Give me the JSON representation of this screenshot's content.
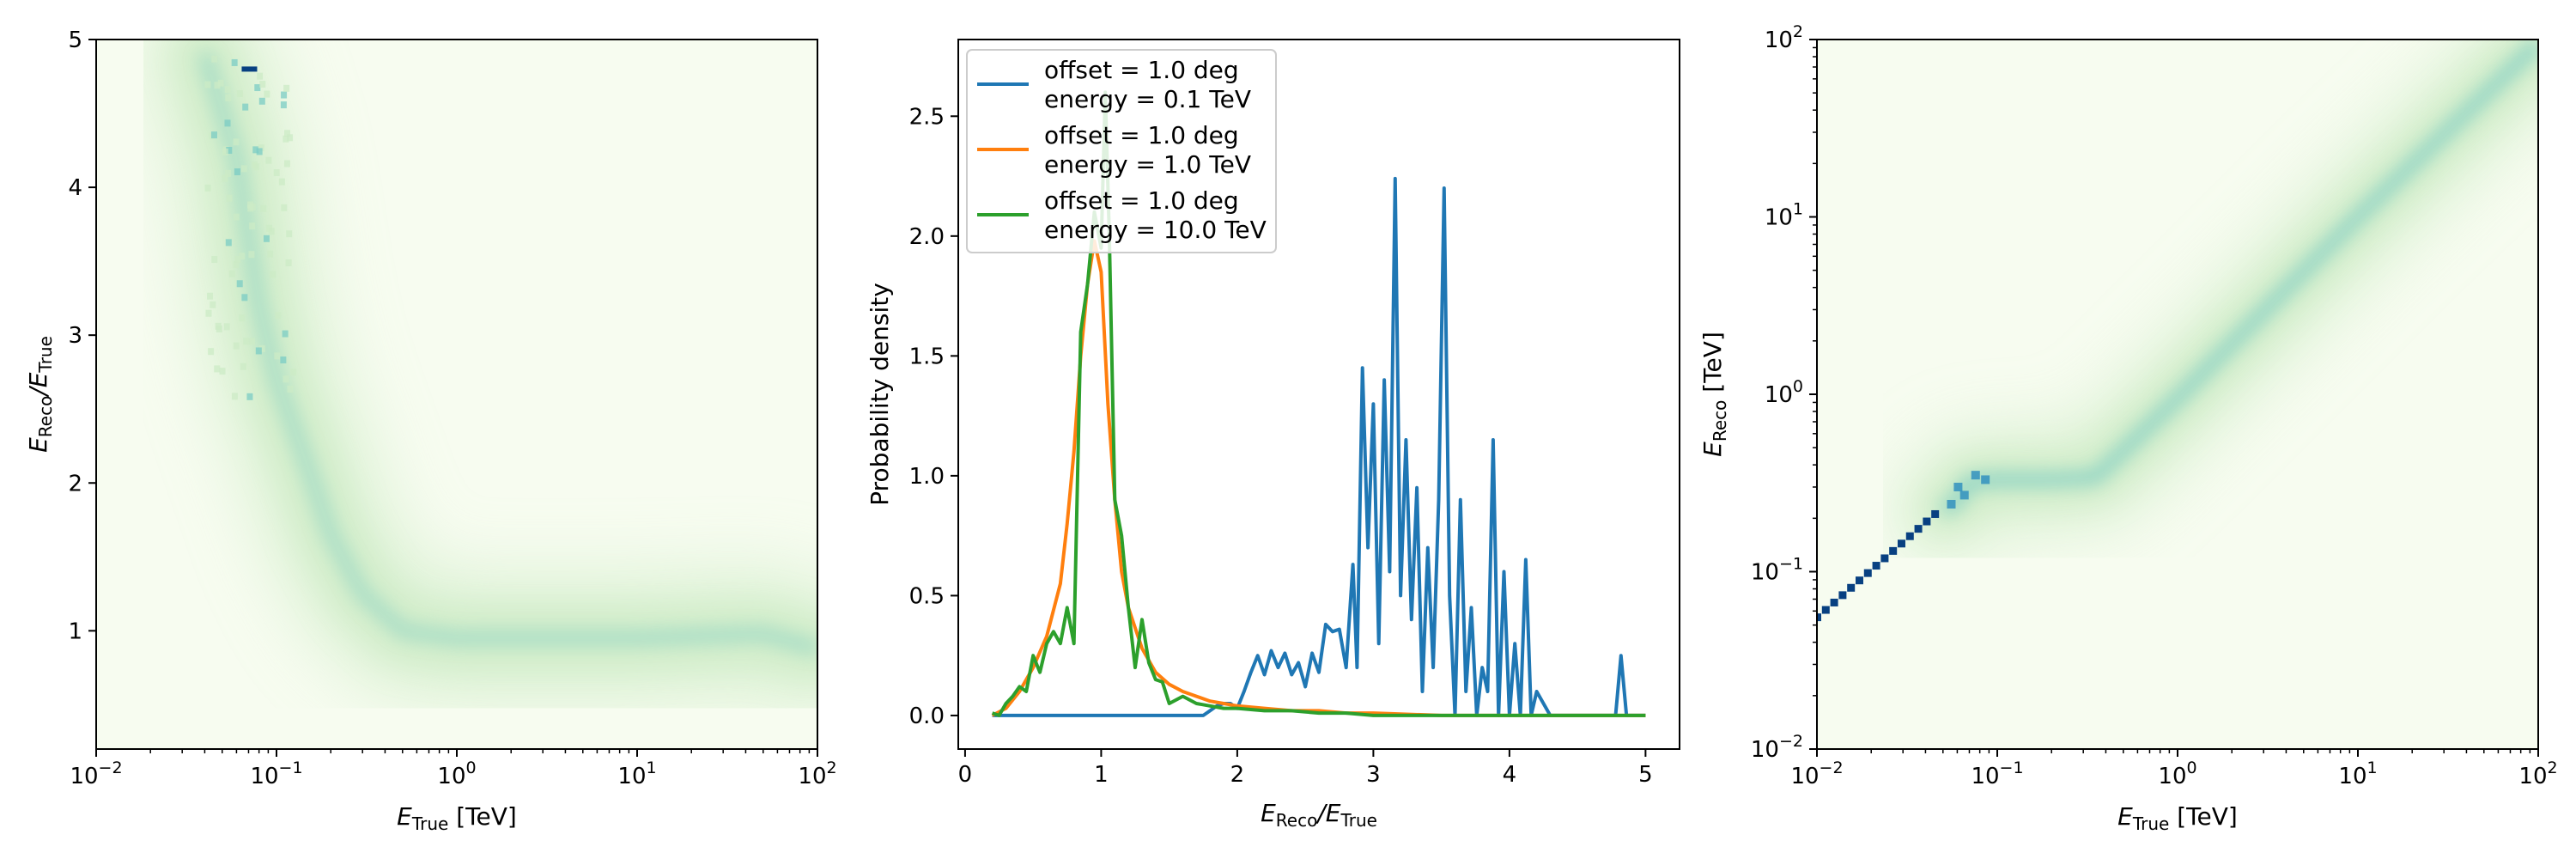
{
  "chart_data": [
    {
      "type": "heatmap",
      "xlabel_main": "E",
      "xlabel_sub": "True",
      "xlabel_unit": " [TeV]",
      "ylabel_main": "E",
      "ylabel_sub1": "Reco",
      "ylabel_mid": "/E",
      "ylabel_sub2": "True",
      "xscale": "log",
      "xlim": [
        0.01,
        100
      ],
      "ylim": [
        0.2,
        5
      ],
      "xticks": [
        {
          "v": 0.01,
          "b": "10",
          "e": "−2"
        },
        {
          "v": 0.1,
          "b": "10",
          "e": "−1"
        },
        {
          "v": 1,
          "b": "10",
          "e": "0"
        },
        {
          "v": 10,
          "b": "10",
          "e": "1"
        },
        {
          "v": 100,
          "b": "10",
          "e": "2"
        }
      ],
      "yticks": [
        1,
        2,
        3,
        4,
        5
      ],
      "colormap": [
        "#f7fcf0",
        "#ccebc5",
        "#7bccc4",
        "#2b8cbe",
        "#084081"
      ],
      "ridge": [
        [
          0.04,
          4.9
        ],
        [
          0.06,
          4.2
        ],
        [
          0.08,
          3.2
        ],
        [
          0.1,
          2.7
        ],
        [
          0.15,
          2.1
        ],
        [
          0.2,
          1.65
        ],
        [
          0.3,
          1.25
        ],
        [
          0.5,
          1.0
        ],
        [
          1,
          0.95
        ],
        [
          10,
          0.95
        ],
        [
          50,
          0.98
        ],
        [
          100,
          0.88
        ]
      ],
      "hotspot": {
        "x": 0.07,
        "y": 4.8
      }
    },
    {
      "type": "line",
      "xlabel_main": "E",
      "xlabel_sub1": "Reco",
      "xlabel_mid": "/E",
      "xlabel_sub2": "True",
      "ylabel": "Probability density",
      "xlim": [
        -0.05,
        5.25
      ],
      "ylim": [
        -0.14,
        2.82
      ],
      "xticks": [
        0,
        1,
        2,
        3,
        4,
        5
      ],
      "yticks": [
        0.0,
        0.5,
        1.0,
        1.5,
        2.0,
        2.5
      ],
      "legend_position": "top-left",
      "series": [
        {
          "name": "offset = 1.0 deg",
          "name2": "energy = 0.1 TeV",
          "color": "#1f77b4",
          "x": [
            0.2,
            0.5,
            1.0,
            1.5,
            1.75,
            1.8,
            1.85,
            1.9,
            1.95,
            2.0,
            2.05,
            2.1,
            2.15,
            2.2,
            2.25,
            2.3,
            2.35,
            2.4,
            2.45,
            2.5,
            2.55,
            2.6,
            2.65,
            2.7,
            2.75,
            2.8,
            2.85,
            2.88,
            2.92,
            2.96,
            3.0,
            3.04,
            3.08,
            3.12,
            3.16,
            3.2,
            3.24,
            3.28,
            3.32,
            3.36,
            3.4,
            3.44,
            3.48,
            3.52,
            3.56,
            3.6,
            3.64,
            3.68,
            3.72,
            3.76,
            3.8,
            3.84,
            3.88,
            3.92,
            3.96,
            4.0,
            4.04,
            4.08,
            4.12,
            4.16,
            4.2,
            4.3,
            4.4,
            4.5,
            4.6,
            4.7,
            4.78,
            4.82,
            4.86,
            4.9,
            5.0
          ],
          "y": [
            0.0,
            0.0,
            0.0,
            0.0,
            0.0,
            0.02,
            0.04,
            0.05,
            0.05,
            0.03,
            0.1,
            0.18,
            0.25,
            0.17,
            0.27,
            0.2,
            0.26,
            0.17,
            0.22,
            0.12,
            0.26,
            0.18,
            0.38,
            0.35,
            0.36,
            0.2,
            0.63,
            0.2,
            1.45,
            0.7,
            1.3,
            0.3,
            1.4,
            0.6,
            2.24,
            0.5,
            1.15,
            0.4,
            0.95,
            0.1,
            0.7,
            0.2,
            0.9,
            2.2,
            0.5,
            0.0,
            0.9,
            0.1,
            0.45,
            0.0,
            0.2,
            0.1,
            1.15,
            0.0,
            0.6,
            0.0,
            0.3,
            0.0,
            0.65,
            0.0,
            0.1,
            0.0,
            0.0,
            0.0,
            0.0,
            0.0,
            0.0,
            0.25,
            0.0,
            0.0,
            0.0
          ]
        },
        {
          "name": "offset = 1.0 deg",
          "name2": "energy = 1.0 TeV",
          "color": "#ff7f0e",
          "x": [
            0.2,
            0.3,
            0.4,
            0.5,
            0.6,
            0.7,
            0.75,
            0.8,
            0.85,
            0.9,
            0.95,
            1.0,
            1.05,
            1.1,
            1.15,
            1.2,
            1.3,
            1.4,
            1.5,
            1.6,
            1.7,
            1.8,
            1.9,
            2.0,
            2.2,
            2.4,
            2.6,
            2.8,
            3.0,
            3.5,
            4.0,
            4.5,
            5.0
          ],
          "y": [
            0.0,
            0.03,
            0.1,
            0.2,
            0.33,
            0.55,
            0.8,
            1.1,
            1.5,
            1.8,
            1.98,
            1.85,
            1.3,
            0.9,
            0.6,
            0.45,
            0.28,
            0.18,
            0.13,
            0.1,
            0.08,
            0.06,
            0.05,
            0.04,
            0.03,
            0.02,
            0.02,
            0.01,
            0.01,
            0.0,
            0.0,
            0.0,
            0.0
          ]
        },
        {
          "name": "offset = 1.0 deg",
          "name2": "energy = 10.0 TeV",
          "color": "#2ca02c",
          "x": [
            0.2,
            0.25,
            0.3,
            0.35,
            0.4,
            0.45,
            0.5,
            0.55,
            0.6,
            0.65,
            0.7,
            0.75,
            0.8,
            0.85,
            0.9,
            0.95,
            1.0,
            1.03,
            1.06,
            1.1,
            1.15,
            1.2,
            1.25,
            1.3,
            1.35,
            1.4,
            1.45,
            1.5,
            1.6,
            1.7,
            1.8,
            1.9,
            2.0,
            2.2,
            2.4,
            2.6,
            2.8,
            3.0,
            3.5,
            4.0,
            4.5,
            5.0
          ],
          "y": [
            0.01,
            0.0,
            0.05,
            0.08,
            0.12,
            0.1,
            0.25,
            0.18,
            0.3,
            0.35,
            0.3,
            0.45,
            0.3,
            1.6,
            1.8,
            2.1,
            1.95,
            2.6,
            2.0,
            0.9,
            0.75,
            0.45,
            0.2,
            0.4,
            0.22,
            0.15,
            0.14,
            0.05,
            0.08,
            0.05,
            0.04,
            0.03,
            0.03,
            0.02,
            0.02,
            0.01,
            0.01,
            0.0,
            0.0,
            0.0,
            0.0,
            0.0
          ]
        }
      ]
    },
    {
      "type": "heatmap",
      "xlabel_main": "E",
      "xlabel_sub": "True",
      "xlabel_unit": " [TeV]",
      "ylabel_main": "E",
      "ylabel_sub": "Reco",
      "ylabel_unit": " [TeV]",
      "xscale": "log",
      "yscale": "log",
      "xlim": [
        0.01,
        100
      ],
      "ylim": [
        0.01,
        100
      ],
      "xticks": [
        {
          "v": 0.01,
          "b": "10",
          "e": "−2"
        },
        {
          "v": 0.1,
          "b": "10",
          "e": "−1"
        },
        {
          "v": 1,
          "b": "10",
          "e": "0"
        },
        {
          "v": 10,
          "b": "10",
          "e": "1"
        },
        {
          "v": 100,
          "b": "10",
          "e": "2"
        }
      ],
      "yticks": [
        {
          "v": 0.01,
          "b": "10",
          "e": "−2"
        },
        {
          "v": 0.1,
          "b": "10",
          "e": "−1"
        },
        {
          "v": 1,
          "b": "10",
          "e": "0"
        },
        {
          "v": 10,
          "b": "10",
          "e": "1"
        },
        {
          "v": 100,
          "b": "10",
          "e": "2"
        }
      ],
      "colormap": [
        "#f7fcf0",
        "#ccebc5",
        "#7bccc4",
        "#2b8cbe",
        "#084081"
      ],
      "diagonal": [
        [
          0.01,
          0.055
        ],
        [
          0.045,
          0.21
        ]
      ],
      "transition": [
        [
          0.05,
          0.22
        ],
        [
          0.06,
          0.25
        ],
        [
          0.07,
          0.32
        ],
        [
          0.1,
          0.33
        ],
        [
          0.2,
          0.33
        ],
        [
          0.35,
          0.34
        ],
        [
          0.5,
          0.48
        ],
        [
          1,
          0.95
        ],
        [
          10,
          10
        ],
        [
          100,
          95
        ]
      ]
    }
  ]
}
